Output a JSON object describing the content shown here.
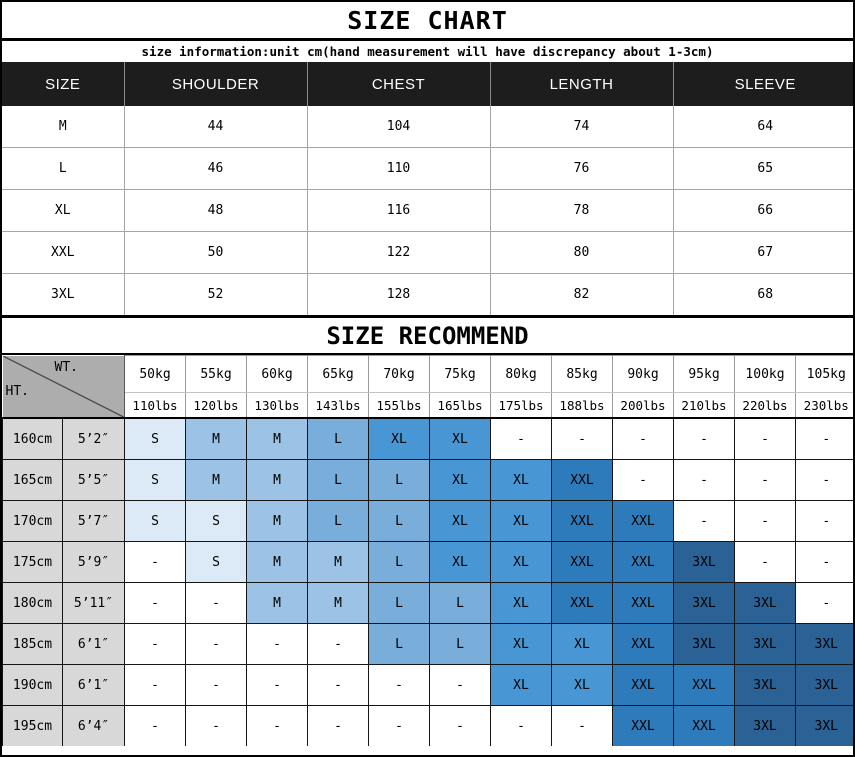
{
  "size_chart": {
    "title": "SIZE CHART",
    "subtitle": "size information:unit cm(hand measurement will have discrepancy about 1-3cm)",
    "columns": [
      "SIZE",
      "SHOULDER",
      "CHEST",
      "LENGTH",
      "SLEEVE"
    ],
    "rows": [
      {
        "size": "M",
        "values": [
          "44",
          "104",
          "74",
          "64"
        ]
      },
      {
        "size": "L",
        "values": [
          "46",
          "110",
          "76",
          "65"
        ]
      },
      {
        "size": "XL",
        "values": [
          "48",
          "116",
          "78",
          "66"
        ]
      },
      {
        "size": "XXL",
        "values": [
          "50",
          "122",
          "80",
          "67"
        ]
      },
      {
        "size": "3XL",
        "values": [
          "52",
          "128",
          "82",
          "68"
        ]
      }
    ]
  },
  "size_recommend": {
    "title": "SIZE RECOMMEND",
    "corner": {
      "top_label": "WT.",
      "bottom_label": "HT."
    },
    "weights_kg": [
      "50kg",
      "55kg",
      "60kg",
      "65kg",
      "70kg",
      "75kg",
      "80kg",
      "85kg",
      "90kg",
      "95kg",
      "100kg",
      "105kg"
    ],
    "weights_lbs": [
      "110lbs",
      "120lbs",
      "130lbs",
      "143lbs",
      "155lbs",
      "165lbs",
      "175lbs",
      "188lbs",
      "200lbs",
      "210lbs",
      "220lbs",
      "230lbs"
    ],
    "rows": [
      {
        "height_cm": "160cm",
        "height_ft": "5’2″",
        "sizes": [
          "S",
          "M",
          "M",
          "L",
          "XL",
          "XL",
          "-",
          "-",
          "-",
          "-",
          "-",
          "-"
        ]
      },
      {
        "height_cm": "165cm",
        "height_ft": "5’5″",
        "sizes": [
          "S",
          "M",
          "M",
          "L",
          "L",
          "XL",
          "XL",
          "XXL",
          "-",
          "-",
          "-",
          "-"
        ]
      },
      {
        "height_cm": "170cm",
        "height_ft": "5’7″",
        "sizes": [
          "S",
          "S",
          "M",
          "L",
          "L",
          "XL",
          "XL",
          "XXL",
          "XXL",
          "-",
          "-",
          "-"
        ]
      },
      {
        "height_cm": "175cm",
        "height_ft": "5’9″",
        "sizes": [
          "-",
          "S",
          "M",
          "M",
          "L",
          "XL",
          "XL",
          "XXL",
          "XXL",
          "3XL",
          "-",
          "-"
        ]
      },
      {
        "height_cm": "180cm",
        "height_ft": "5’11″",
        "sizes": [
          "-",
          "-",
          "M",
          "M",
          "L",
          "L",
          "XL",
          "XXL",
          "XXL",
          "3XL",
          "3XL",
          "-"
        ]
      },
      {
        "height_cm": "185cm",
        "height_ft": "6’1″",
        "sizes": [
          "-",
          "-",
          "-",
          "-",
          "L",
          "L",
          "XL",
          "XL",
          "XXL",
          "3XL",
          "3XL",
          "3XL"
        ]
      },
      {
        "height_cm": "190cm",
        "height_ft": "6’1″",
        "sizes": [
          "-",
          "-",
          "-",
          "-",
          "-",
          "-",
          "XL",
          "XL",
          "XXL",
          "XXL",
          "3XL",
          "3XL"
        ]
      },
      {
        "height_cm": "195cm",
        "height_ft": "6’4″",
        "sizes": [
          "-",
          "-",
          "-",
          "-",
          "-",
          "-",
          "-",
          "-",
          "XXL",
          "XXL",
          "3XL",
          "3XL"
        ]
      }
    ],
    "size_colors": {
      "S": "#dce9f6",
      "M": "#9cc3e6",
      "L": "#79aedb",
      "XL": "#4897d4",
      "XXL": "#2e7bbc",
      "3XL": "#2b6295",
      "-": "#ffffff"
    }
  }
}
